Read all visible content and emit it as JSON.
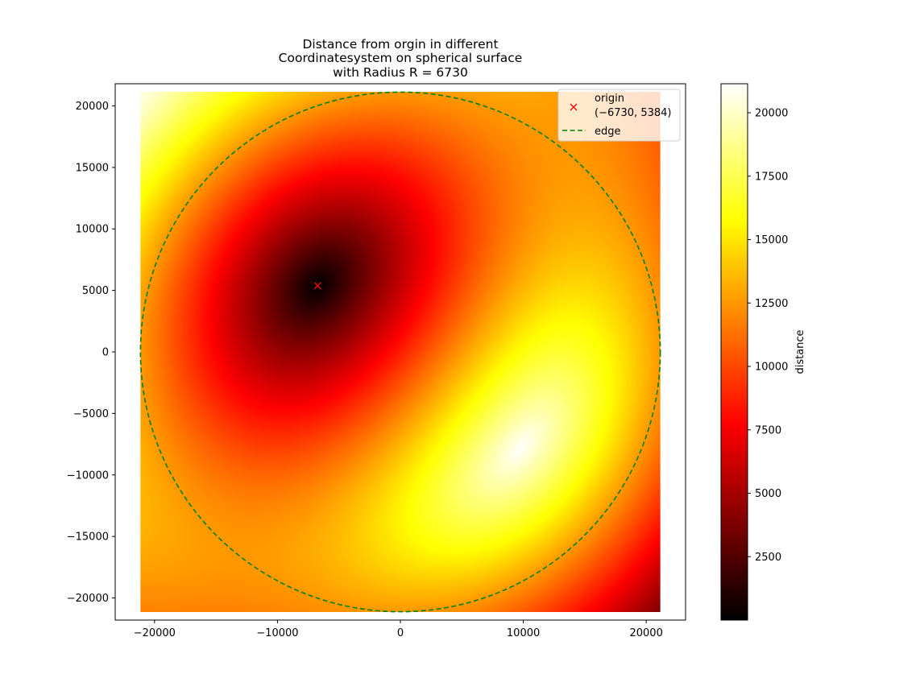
{
  "chart_data": {
    "type": "heatmap",
    "title_lines": [
      "Distance from orgin in different",
      "Coordinatesystem on spherical surface",
      "with Radius R = 6730"
    ],
    "xlabel": "",
    "ylabel": "",
    "xlim": [
      -23200,
      23200
    ],
    "ylim": [
      -21800,
      21800
    ],
    "extent": [
      -21144,
      21144,
      -21144,
      21144
    ],
    "sphere_radius": 6730,
    "edge_radius": 21144,
    "x_ticks": [
      -20000,
      -10000,
      0,
      10000,
      20000
    ],
    "x_tick_labels": [
      "−20000",
      "−10000",
      "0",
      "10000",
      "20000"
    ],
    "y_ticks": [
      -20000,
      -15000,
      -10000,
      -5000,
      0,
      5000,
      10000,
      15000,
      20000
    ],
    "y_tick_labels": [
      "−20000",
      "−15000",
      "−10000",
      "−5000",
      "0",
      "5000",
      "10000",
      "15000",
      "20000"
    ],
    "origin_point": {
      "x": -6730,
      "y": 5384,
      "marker": "x",
      "color": "#ff0000"
    },
    "series": [
      {
        "name": "origin",
        "sublabel": "(−6730, 5384)",
        "kind": "marker",
        "color": "#ff0000"
      },
      {
        "name": "edge",
        "kind": "dashed-circle",
        "color": "#008000"
      }
    ],
    "colormap": "hot",
    "legend_position": "top-right",
    "colorbar": {
      "label": "distance",
      "range": [
        0,
        21144
      ],
      "ticks": [
        2500,
        5000,
        7500,
        10000,
        12500,
        15000,
        17500,
        20000
      ],
      "tick_labels": [
        "2500",
        "5000",
        "7500",
        "10000",
        "12500",
        "15000",
        "17500",
        "20000"
      ]
    },
    "grid": false
  }
}
